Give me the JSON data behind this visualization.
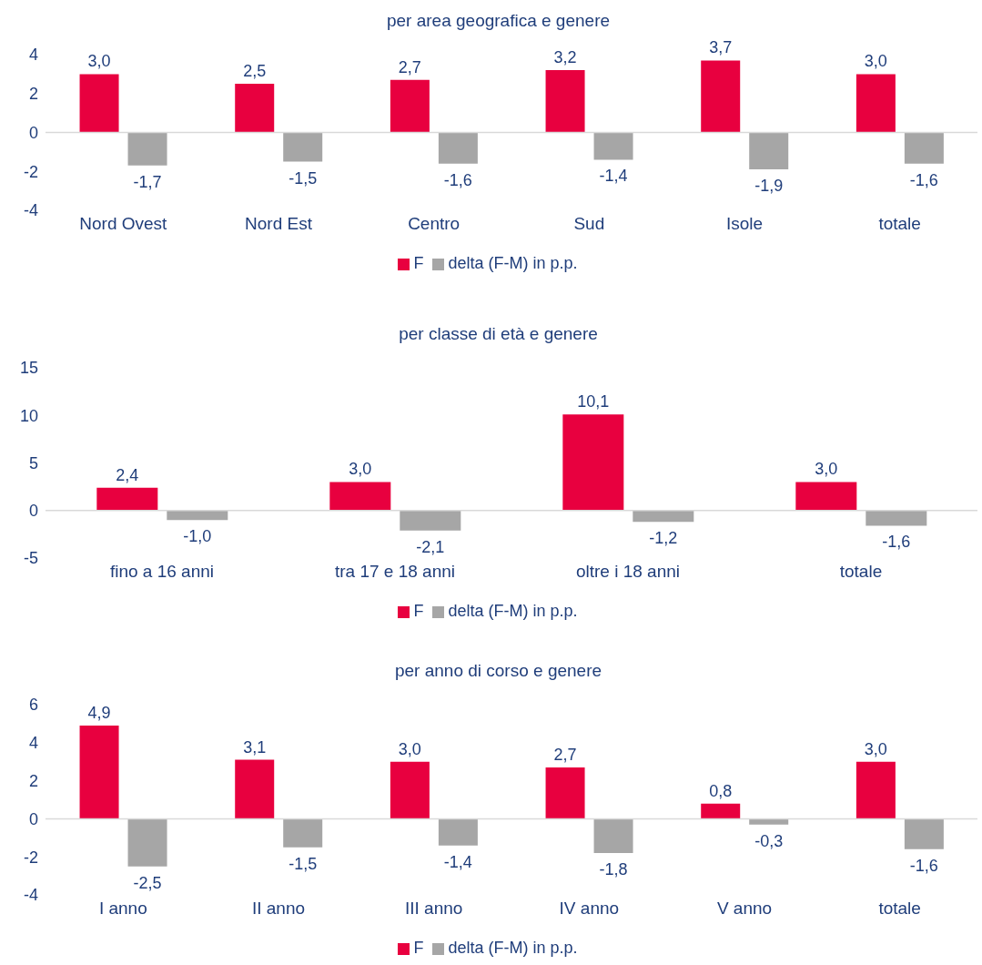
{
  "chart_data": [
    {
      "type": "bar",
      "title": "per area geografica e genere",
      "categories": [
        "Nord Ovest",
        "Nord Est",
        "Centro",
        "Sud",
        "Isole",
        "totale"
      ],
      "series": [
        {
          "name": "F",
          "color": "#e8003f",
          "values": [
            3.0,
            2.5,
            2.7,
            3.2,
            3.7,
            3.0
          ],
          "value_labels": [
            "3,0",
            "2,5",
            "2,7",
            "3,2",
            "3,7",
            "3,0"
          ]
        },
        {
          "name": "delta (F-M) in p.p.",
          "color": "#a6a6a6",
          "values": [
            -1.7,
            -1.5,
            -1.6,
            -1.4,
            -1.9,
            -1.6
          ],
          "value_labels": [
            "-1,7",
            "-1,5",
            "-1,6",
            "-1,4",
            "-1,9",
            "-1,6"
          ]
        }
      ],
      "ylim": [
        -4,
        4
      ],
      "yticks": [
        -4,
        -2,
        0,
        2,
        4
      ],
      "ref_lines": [
        {
          "axis": "y",
          "value": 0,
          "color": "#d9d9d9"
        }
      ],
      "legend": "bottom"
    },
    {
      "type": "bar",
      "title": "per classe di età e genere",
      "categories": [
        "fino a 16 anni",
        "tra 17 e 18 anni",
        "oltre i 18 anni",
        "totale"
      ],
      "series": [
        {
          "name": "F",
          "color": "#e8003f",
          "values": [
            2.4,
            3.0,
            10.1,
            3.0
          ],
          "value_labels": [
            "2,4",
            "3,0",
            "10,1",
            "3,0"
          ]
        },
        {
          "name": "delta (F-M) in p.p.",
          "color": "#a6a6a6",
          "values": [
            -1.0,
            -2.1,
            -1.2,
            -1.6
          ],
          "value_labels": [
            "-1,0",
            "-2,1",
            "-1,2",
            "-1,6"
          ]
        }
      ],
      "ylim": [
        -5,
        15
      ],
      "yticks": [
        -5,
        0,
        5,
        10,
        15
      ],
      "ref_lines": [
        {
          "axis": "y",
          "value": 0,
          "color": "#d9d9d9"
        }
      ],
      "legend": "bottom"
    },
    {
      "type": "bar",
      "title": "per anno di corso e genere",
      "categories": [
        "I anno",
        "II anno",
        "III anno",
        "IV anno",
        "V anno",
        "totale"
      ],
      "series": [
        {
          "name": "F",
          "color": "#e8003f",
          "values": [
            4.9,
            3.1,
            3.0,
            2.7,
            0.8,
            3.0
          ],
          "value_labels": [
            "4,9",
            "3,1",
            "3,0",
            "2,7",
            "0,8",
            "3,0"
          ]
        },
        {
          "name": "delta (F-M) in p.p.",
          "color": "#a6a6a6",
          "values": [
            -2.5,
            -1.5,
            -1.4,
            -1.8,
            -0.3,
            -1.6
          ],
          "value_labels": [
            "-2,5",
            "-1,5",
            "-1,4",
            "-1,8",
            "-0,3",
            "-1,6"
          ]
        }
      ],
      "ylim": [
        -4,
        6
      ],
      "yticks": [
        -4,
        -2,
        0,
        2,
        4,
        6
      ],
      "ref_lines": [
        {
          "axis": "y",
          "value": 0,
          "color": "#d9d9d9"
        }
      ],
      "legend": "bottom"
    }
  ]
}
